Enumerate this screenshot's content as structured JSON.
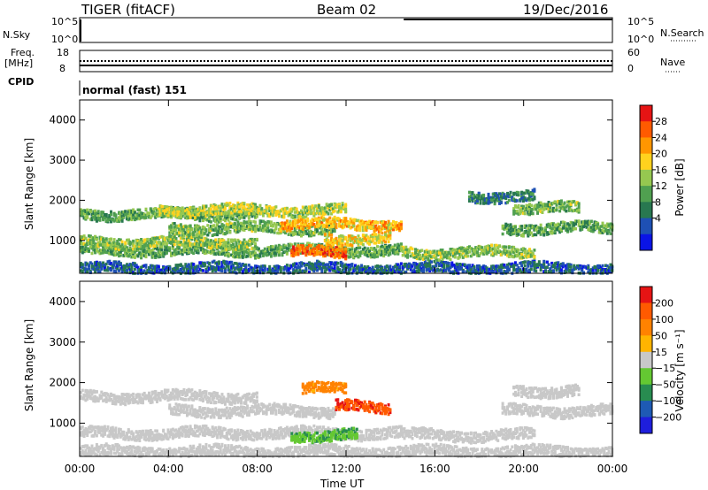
{
  "header": {
    "radar": "TIGER (fitACF)",
    "beam": "Beam 02",
    "date": "19/Dec/2016"
  },
  "strips": {
    "nsky_label": "N.Sky",
    "nsearch_label": "N.Search",
    "nsky_ticks": [
      "10^5",
      "10^0"
    ],
    "nsearch_ticks": [
      "10^5",
      "10^0"
    ],
    "freq_label_1": "Freq.",
    "freq_label_2": "[MHz]",
    "freq_ticks": [
      "18",
      "8"
    ],
    "nave_label": "Nave",
    "nave_ticks": [
      "60",
      "0"
    ],
    "cpid_label": "CPID",
    "cpid_value": "normal (fast) 151"
  },
  "chart_data": [
    {
      "type": "heatmap",
      "panel": "power",
      "xlabel": "Time UT",
      "ylabel": "Slant Range [km]",
      "xticks": [
        "00:00",
        "04:00",
        "08:00",
        "12:00",
        "16:00",
        "20:00",
        "00:00"
      ],
      "yticks": [
        1000,
        2000,
        3000,
        4000
      ],
      "xlim_hours": [
        0,
        24
      ],
      "ylim_km": [
        180,
        4500
      ],
      "colorbar": {
        "label": "Power [dB]",
        "ticks": [
          "28",
          "24",
          "20",
          "16",
          "12",
          "8",
          "4"
        ],
        "range": [
          0,
          30
        ],
        "colors": [
          "#0a14e6",
          "#1e50b4",
          "#287850",
          "#50a050",
          "#96c850",
          "#ffd21e",
          "#ff9600",
          "#ff5a00",
          "#e61414"
        ]
      },
      "echo_bands": [
        {
          "start_h": 0.0,
          "end_h": 24.0,
          "range_km": 300,
          "level": 6
        },
        {
          "start_h": 0.0,
          "end_h": 14.5,
          "range_km": 750,
          "level": 12
        },
        {
          "start_h": 0.0,
          "end_h": 8.0,
          "range_km": 950,
          "level": 14
        },
        {
          "start_h": 0.0,
          "end_h": 8.0,
          "range_km": 1650,
          "level": 12
        },
        {
          "start_h": 4.0,
          "end_h": 11.5,
          "range_km": 1300,
          "level": 13
        },
        {
          "start_h": 3.5,
          "end_h": 12.0,
          "range_km": 1750,
          "level": 16
        },
        {
          "start_h": 9.0,
          "end_h": 14.5,
          "range_km": 1400,
          "level": 20
        },
        {
          "start_h": 9.5,
          "end_h": 12.0,
          "range_km": 700,
          "level": 24
        },
        {
          "start_h": 11.0,
          "end_h": 14.0,
          "range_km": 1050,
          "level": 18
        },
        {
          "start_h": 14.5,
          "end_h": 20.5,
          "range_km": 700,
          "level": 14
        },
        {
          "start_h": 19.0,
          "end_h": 24.0,
          "range_km": 1300,
          "level": 12
        },
        {
          "start_h": 19.5,
          "end_h": 22.5,
          "range_km": 1800,
          "level": 13
        },
        {
          "start_h": 17.5,
          "end_h": 20.5,
          "range_km": 2100,
          "level": 8
        }
      ]
    },
    {
      "type": "heatmap",
      "panel": "velocity",
      "xlabel": "Time UT",
      "ylabel": "Slant Range [km]",
      "xticks": [
        "00:00",
        "04:00",
        "08:00",
        "12:00",
        "16:00",
        "20:00",
        "00:00"
      ],
      "yticks": [
        1000,
        2000,
        3000,
        4000
      ],
      "xlim_hours": [
        0,
        24
      ],
      "ylim_km": [
        180,
        4500
      ],
      "colorbar": {
        "label": "Velocity [m s⁻¹]",
        "ticks": [
          "200",
          "100",
          "50",
          "15",
          "−15",
          "−50",
          "−100",
          "−200"
        ],
        "range": [
          -200,
          200
        ],
        "colors": [
          "#1e1edc",
          "#1e5ab4",
          "#288c50",
          "#64c832",
          "#c8c8c8",
          "#ffb400",
          "#ff8200",
          "#ff5a00",
          "#e61414"
        ]
      },
      "echo_bands": [
        {
          "start_h": 0.0,
          "end_h": 24.0,
          "range_km": 300,
          "level": 0
        },
        {
          "start_h": 0.0,
          "end_h": 14.5,
          "range_km": 750,
          "level": 0
        },
        {
          "start_h": 0.0,
          "end_h": 8.0,
          "range_km": 1650,
          "level": 0
        },
        {
          "start_h": 4.0,
          "end_h": 11.5,
          "range_km": 1300,
          "level": 0
        },
        {
          "start_h": 9.5,
          "end_h": 12.5,
          "range_km": 700,
          "level": -60
        },
        {
          "start_h": 11.5,
          "end_h": 14.0,
          "range_km": 1400,
          "level": 150
        },
        {
          "start_h": 10.0,
          "end_h": 12.0,
          "range_km": 1850,
          "level": 80
        },
        {
          "start_h": 14.5,
          "end_h": 20.5,
          "range_km": 700,
          "level": 0
        },
        {
          "start_h": 19.0,
          "end_h": 24.0,
          "range_km": 1300,
          "level": 0
        },
        {
          "start_h": 19.5,
          "end_h": 22.5,
          "range_km": 1800,
          "level": 0
        }
      ]
    }
  ]
}
